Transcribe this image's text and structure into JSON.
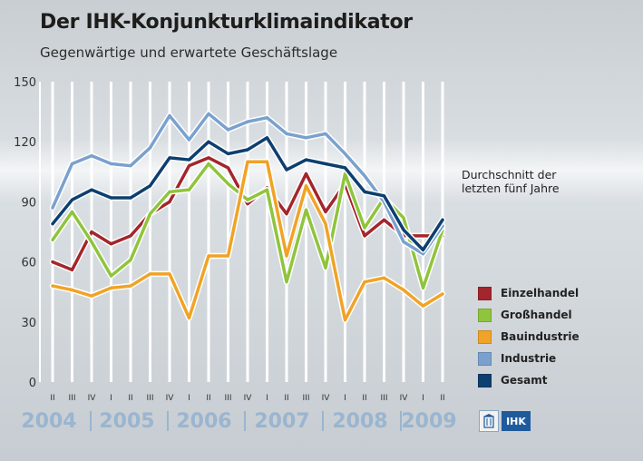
{
  "header": {
    "title": "Der IHK-Konjunkturklimaindikator",
    "subtitle": "Gegenwärtige und erwartete Geschäftslage"
  },
  "annotation": [
    "Durchschnitt der",
    "letzten fünf Jahre"
  ],
  "logo": {
    "text": "IHK"
  },
  "chart_data": {
    "type": "line",
    "title": "Der IHK-Konjunkturklimaindikator",
    "subtitle": "Gegenwärtige und erwartete Geschäftslage",
    "ylim": [
      0,
      150
    ],
    "yticks": [
      0,
      30,
      60,
      90,
      120,
      150
    ],
    "grid": "vertical white lines at each quarter",
    "x": [
      "2004 II",
      "2004 III",
      "2004 IV",
      "2005 I",
      "2005 II",
      "2005 III",
      "2005 IV",
      "2006 I",
      "2006 II",
      "2006 III",
      "2006 IV",
      "2007 I",
      "2007 II",
      "2007 III",
      "2007 IV",
      "2008 I",
      "2008 II",
      "2008 III",
      "2008 IV",
      "2009 I",
      "2009 II"
    ],
    "quarter_labels": [
      "II",
      "III",
      "IV",
      "I",
      "II",
      "III",
      "IV",
      "I",
      "II",
      "III",
      "IV",
      "I",
      "II",
      "III",
      "IV",
      "I",
      "II",
      "III",
      "IV",
      "I",
      "II"
    ],
    "years": [
      "2004",
      "2005",
      "2006",
      "2007",
      "2008",
      "2009"
    ],
    "year_label_color": "#9ab5cf",
    "average_band": {
      "label": "Durchschnitt der letzten fünf Jahre",
      "value": 108
    },
    "legend_position": "right",
    "series": [
      {
        "name": "Einzelhandel",
        "color": "#a3262c",
        "values": [
          60,
          56,
          75,
          69,
          73,
          84,
          90,
          108,
          112,
          107,
          89,
          97,
          84,
          104,
          85,
          99,
          73,
          81,
          73,
          73,
          73
        ]
      },
      {
        "name": "Großhandel",
        "color": "#8fc43c",
        "values": [
          71,
          85,
          70,
          53,
          61,
          84,
          95,
          96,
          109,
          99,
          91,
          96,
          50,
          86,
          57,
          104,
          77,
          92,
          82,
          47,
          76
        ]
      },
      {
        "name": "Bauindustrie",
        "color": "#f0a326",
        "values": [
          48,
          46,
          43,
          47,
          48,
          54,
          54,
          32,
          63,
          63,
          110,
          110,
          63,
          98,
          79,
          31,
          50,
          52,
          46,
          38,
          44
        ]
      },
      {
        "name": "Industrie",
        "color": "#7aa1ce",
        "values": [
          87,
          109,
          113,
          109,
          108,
          117,
          133,
          121,
          134,
          126,
          130,
          132,
          124,
          122,
          124,
          114,
          103,
          90,
          70,
          64,
          78
        ]
      },
      {
        "name": "Gesamt",
        "color": "#0d3f6f",
        "values": [
          79,
          91,
          96,
          92,
          92,
          98,
          112,
          111,
          120,
          114,
          116,
          122,
          106,
          111,
          109,
          107,
          95,
          93,
          76,
          66,
          81
        ]
      }
    ]
  }
}
